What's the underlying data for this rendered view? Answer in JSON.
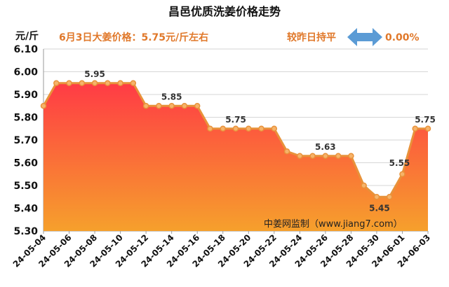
{
  "header": {
    "title": "昌邑优质洗姜价格走势",
    "unit": "元/斤",
    "note_left": "6月3日大姜价格：5.75元/斤左右",
    "note_right_label": "较昨日持平",
    "note_right_value": "0.00%"
  },
  "watermark": "中姜网监制（www.jiang7.com）",
  "colors": {
    "line": "#e8923a",
    "marker_fill": "#f6b36a",
    "area_top": "#ff3b45",
    "area_bottom": "#f6a02c",
    "arrow": "#5b9bd5",
    "note": "#e0782a"
  },
  "chart_data": {
    "type": "area",
    "x": [
      "24-05-04",
      "24-05-05",
      "24-05-06",
      "24-05-07",
      "24-05-08",
      "24-05-09",
      "24-05-10",
      "24-05-11",
      "24-05-12",
      "24-05-13",
      "24-05-14",
      "24-05-15",
      "24-05-16",
      "24-05-17",
      "24-05-18",
      "24-05-19",
      "24-05-20",
      "24-05-21",
      "24-05-22",
      "24-05-23",
      "24-05-24",
      "24-05-25",
      "24-05-26",
      "24-05-27",
      "24-05-28",
      "24-05-29",
      "24-05-30",
      "24-05-31",
      "24-06-01",
      "24-06-02",
      "24-06-03"
    ],
    "values": [
      5.85,
      5.95,
      5.95,
      5.95,
      5.95,
      5.95,
      5.95,
      5.95,
      5.85,
      5.85,
      5.85,
      5.85,
      5.85,
      5.75,
      5.75,
      5.75,
      5.75,
      5.75,
      5.75,
      5.65,
      5.63,
      5.63,
      5.63,
      5.63,
      5.63,
      5.5,
      5.45,
      5.45,
      5.55,
      5.75,
      5.75
    ],
    "x_tick_labels": [
      "24-05-04",
      "24-05-06",
      "24-05-08",
      "24-05-10",
      "24-05-12",
      "24-05-14",
      "24-05-16",
      "24-05-18",
      "24-05-20",
      "24-05-22",
      "24-05-24",
      "24-05-26",
      "24-05-28",
      "24-05-30",
      "24-06-01",
      "24-06-03"
    ],
    "y_tick_labels": [
      "5.30",
      "5.40",
      "5.50",
      "5.60",
      "5.70",
      "5.80",
      "5.90",
      "6.00",
      "6.10"
    ],
    "ylim": [
      5.3,
      6.1
    ],
    "grid": true,
    "data_labels": [
      {
        "x": "24-05-08",
        "text": "5.95"
      },
      {
        "x": "24-05-14",
        "text": "5.85"
      },
      {
        "x": "24-05-19",
        "text": "5.75"
      },
      {
        "x": "24-05-26",
        "text": "5.63"
      },
      {
        "x": "24-05-30",
        "text": "5.45"
      },
      {
        "x": "24-06-01",
        "text": "5.55"
      },
      {
        "x": "24-06-03",
        "text": "5.75"
      }
    ]
  }
}
